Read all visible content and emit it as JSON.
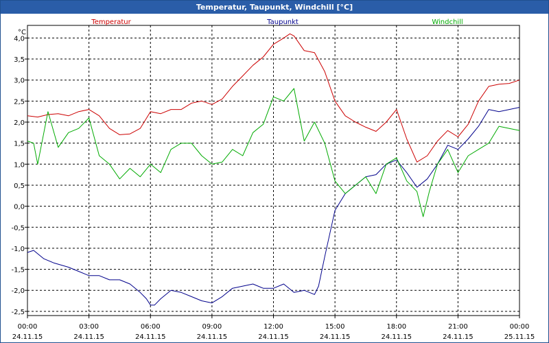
{
  "window": {
    "title": "Temperatur, Taupunkt, Windchill [°C]"
  },
  "chart_data": {
    "type": "line",
    "title": "Temperatur, Taupunkt, Windchill [°C]",
    "ylabel": "°C",
    "ylim": [
      -2.6,
      4.3
    ],
    "xlim": [
      0,
      24
    ],
    "y_ticks": [
      4.0,
      3.5,
      3.0,
      2.5,
      2.0,
      1.5,
      1.0,
      0.5,
      0.0,
      -0.5,
      -1.0,
      -1.5,
      -2.0,
      -2.5
    ],
    "y_tick_labels": [
      "4,0",
      "3,5",
      "3,0",
      "2,5",
      "2,0",
      "1,5",
      "1,0",
      "0,5",
      "0,0",
      "-0,5",
      "-1,0",
      "-1,5",
      "-2,0",
      "-2,5"
    ],
    "x_ticks": [
      0,
      3,
      6,
      9,
      12,
      15,
      18,
      21,
      24
    ],
    "x_tick_times": [
      "00:00",
      "03:00",
      "06:00",
      "09:00",
      "12:00",
      "15:00",
      "18:00",
      "21:00",
      "00:00"
    ],
    "x_tick_dates": [
      "24.11.15",
      "24.11.15",
      "24.11.15",
      "24.11.15",
      "24.11.15",
      "24.11.15",
      "24.11.15",
      "24.11.15",
      "25.11.15"
    ],
    "grid": true,
    "legend_position": "top",
    "series": [
      {
        "name": "Temperatur",
        "color": "#cc0000",
        "x": [
          0,
          0.5,
          1,
          1.5,
          2,
          2.5,
          3,
          3.5,
          4,
          4.5,
          5,
          5.5,
          6,
          6.5,
          7,
          7.5,
          8,
          8.5,
          9,
          9.5,
          10,
          10.5,
          11,
          11.5,
          12,
          12.5,
          12.8,
          13,
          13.5,
          14,
          14.5,
          15,
          15.5,
          16,
          16.5,
          17,
          17.5,
          18,
          18.5,
          19,
          19.5,
          20,
          20.5,
          21,
          21.5,
          22,
          22.5,
          23,
          23.5,
          24
        ],
        "values": [
          2.15,
          2.12,
          2.18,
          2.2,
          2.15,
          2.25,
          2.3,
          2.15,
          1.85,
          1.7,
          1.72,
          1.85,
          2.25,
          2.2,
          2.3,
          2.3,
          2.45,
          2.5,
          2.42,
          2.55,
          2.85,
          3.1,
          3.35,
          3.55,
          3.85,
          4.0,
          4.1,
          4.05,
          3.7,
          3.65,
          3.2,
          2.5,
          2.15,
          2.0,
          1.88,
          1.78,
          2.0,
          2.3,
          1.6,
          1.05,
          1.2,
          1.55,
          1.8,
          1.65,
          1.95,
          2.5,
          2.85,
          2.9,
          2.92,
          3.0
        ]
      },
      {
        "name": "Taupunkt",
        "color": "#00008b",
        "x": [
          0,
          0.3,
          0.8,
          1.3,
          2,
          2.5,
          3,
          3.5,
          4,
          4.5,
          5,
          5.5,
          5.8,
          6,
          6.2,
          6.5,
          7,
          7.5,
          8,
          8.5,
          9,
          9.5,
          10,
          10.5,
          11,
          11.5,
          12,
          12.5,
          13,
          13.5,
          14,
          14.2,
          14.5,
          15,
          15.5,
          16,
          16.5,
          17,
          17.5,
          18,
          18.5,
          19,
          19.5,
          20,
          20.5,
          21,
          21.5,
          22,
          22.5,
          23,
          23.5,
          24
        ],
        "values": [
          -1.1,
          -1.05,
          -1.25,
          -1.35,
          -1.45,
          -1.55,
          -1.65,
          -1.65,
          -1.75,
          -1.75,
          -1.85,
          -2.05,
          -2.2,
          -2.35,
          -2.35,
          -2.2,
          -2.0,
          -2.05,
          -2.15,
          -2.25,
          -2.3,
          -2.15,
          -1.95,
          -1.9,
          -1.85,
          -1.95,
          -1.95,
          -1.85,
          -2.05,
          -2.0,
          -2.1,
          -1.9,
          -1.2,
          -0.1,
          0.3,
          0.5,
          0.7,
          0.75,
          1.0,
          1.1,
          0.8,
          0.45,
          0.65,
          1.0,
          1.45,
          1.35,
          1.6,
          1.9,
          2.3,
          2.25,
          2.3,
          2.35
        ]
      },
      {
        "name": "Windchill",
        "color": "#00aa00",
        "x": [
          0,
          0.3,
          0.5,
          1,
          1.5,
          2,
          2.5,
          3,
          3.5,
          4,
          4.5,
          5,
          5.5,
          6,
          6.5,
          7,
          7.5,
          8,
          8.5,
          9,
          9.5,
          10,
          10.5,
          11,
          11.5,
          12,
          12.5,
          13,
          13.5,
          14,
          14.5,
          15,
          15.5,
          16,
          16.5,
          17,
          17.5,
          18,
          18.5,
          19,
          19.3,
          19.6,
          20,
          20.5,
          21,
          21.5,
          22,
          22.5,
          23,
          23.5,
          24
        ],
        "values": [
          1.55,
          1.5,
          1.0,
          2.25,
          1.4,
          1.75,
          1.85,
          2.1,
          1.2,
          1.0,
          0.65,
          0.9,
          0.7,
          1.0,
          0.8,
          1.35,
          1.5,
          1.5,
          1.2,
          1.0,
          1.05,
          1.35,
          1.2,
          1.75,
          1.95,
          2.6,
          2.5,
          2.8,
          1.55,
          2.0,
          1.5,
          0.6,
          0.3,
          0.5,
          0.7,
          0.3,
          1.0,
          1.15,
          0.6,
          0.35,
          -0.25,
          0.35,
          1.0,
          1.35,
          0.8,
          1.2,
          1.35,
          1.5,
          1.9,
          1.85,
          1.8
        ]
      }
    ]
  }
}
